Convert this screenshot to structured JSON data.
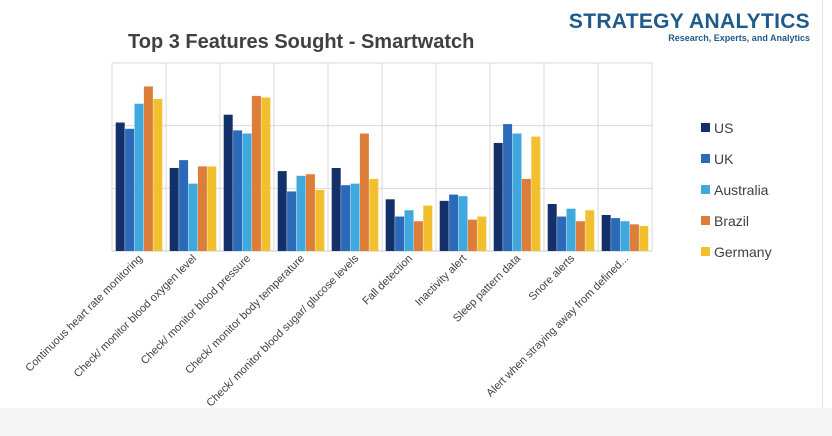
{
  "logo": {
    "name": "STRATEGY ANALYTICS",
    "tagline": "Research, Experts, and Analytics"
  },
  "chart_data": {
    "type": "bar",
    "title": "Top 3 Features Sought - Smartwatch",
    "xlabel": "",
    "ylabel": "",
    "ylim": [
      0,
      60
    ],
    "grid": true,
    "axis_tick_labels_visible": false,
    "legend_position": "right",
    "categories": [
      "Continuous heart rate monitoring",
      "Check/ monitor blood oxygen level",
      "Check/ monitor blood pressure",
      "Check/ monitor body temperature",
      "Check/ monitor blood sugar/ glucose levels",
      "Fall detection",
      "Inactivity alert",
      "Sleep pattern data",
      "Snore alerts",
      "Alert when straying away from defined..."
    ],
    "series": [
      {
        "name": "US",
        "color": "#14306b",
        "values": [
          41,
          26.5,
          43.5,
          25.5,
          26.5,
          16.5,
          16,
          34.5,
          15,
          11.5
        ]
      },
      {
        "name": "UK",
        "color": "#2a6ab8",
        "values": [
          39,
          29,
          38.5,
          19,
          21,
          11,
          18,
          40.5,
          11,
          10.5
        ]
      },
      {
        "name": "Australia",
        "color": "#3fa8dd",
        "values": [
          47,
          21.5,
          37.5,
          24,
          21.5,
          13,
          17.5,
          37.5,
          13.5,
          9.5
        ]
      },
      {
        "name": "Brazil",
        "color": "#dc7d3a",
        "values": [
          52.5,
          27,
          49.5,
          24.5,
          37.5,
          9.5,
          10,
          23,
          9.5,
          8.5
        ]
      },
      {
        "name": "Germany",
        "color": "#f2c02e",
        "values": [
          48.5,
          27,
          49,
          19.5,
          23,
          14.5,
          11,
          36.5,
          13,
          8
        ]
      }
    ]
  }
}
